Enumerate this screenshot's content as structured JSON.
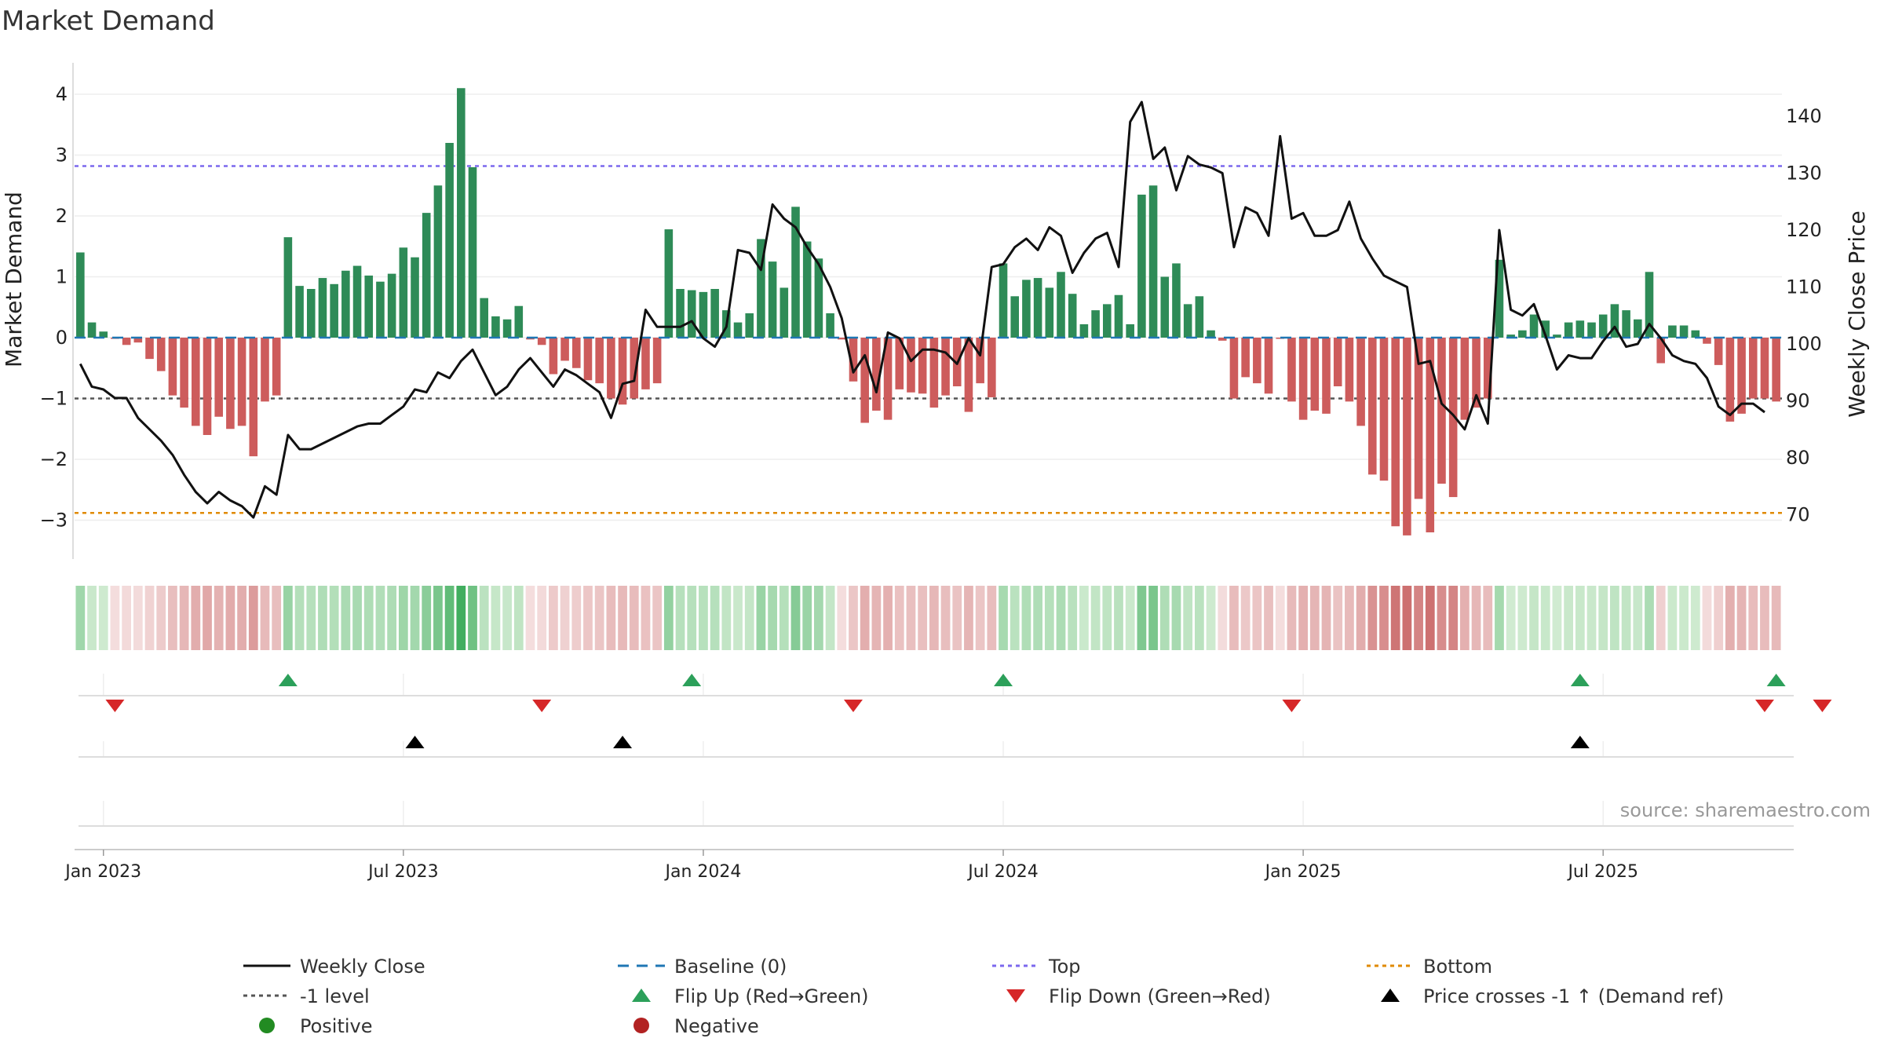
{
  "chart_data": {
    "type": "bar",
    "title": "Market Demand",
    "ylabel": "Market Demand",
    "y2label": "Weekly Close Price",
    "ylim": [
      -3.7,
      4.5
    ],
    "y2lim": [
      61,
      147
    ],
    "yticks": [
      "4",
      "3",
      "2",
      "1",
      "0",
      "−1",
      "−2",
      "−3"
    ],
    "y2ticks": [
      "140",
      "130",
      "120",
      "110",
      "100",
      "90",
      "80",
      "70"
    ],
    "x_labels": [
      "Jan 2023",
      "Jul 2023",
      "Jan 2024",
      "Jul 2024",
      "Jan 2025",
      "Jul 2025"
    ],
    "x_label_weeks": [
      0,
      26,
      52,
      78,
      104,
      130
    ],
    "start_week": -2,
    "levels": {
      "baseline": 0,
      "top": 2.82,
      "minus_one": -1,
      "bottom": -2.88
    },
    "demand": [
      1.4,
      0.25,
      0.1,
      -0.02,
      -0.12,
      -0.08,
      -0.35,
      -0.55,
      -0.95,
      -1.15,
      -1.45,
      -1.6,
      -1.3,
      -1.5,
      -1.45,
      -1.95,
      -1.05,
      -0.95,
      1.65,
      0.85,
      0.8,
      0.98,
      0.88,
      1.1,
      1.18,
      1.02,
      0.92,
      1.05,
      1.48,
      1.32,
      2.05,
      2.5,
      3.2,
      4.1,
      2.8,
      0.65,
      0.35,
      0.3,
      0.52,
      -0.03,
      -0.12,
      -0.6,
      -0.38,
      -0.5,
      -0.7,
      -0.75,
      -1.0,
      -1.1,
      -1.0,
      -0.85,
      -0.75,
      1.78,
      0.8,
      0.78,
      0.75,
      0.8,
      0.45,
      0.25,
      0.4,
      1.62,
      1.25,
      0.82,
      2.15,
      1.58,
      1.3,
      0.4,
      -0.03,
      -0.72,
      -1.4,
      -1.2,
      -1.35,
      -0.85,
      -0.9,
      -0.92,
      -1.15,
      -0.95,
      -0.8,
      -1.22,
      -0.75,
      -0.98,
      1.22,
      0.68,
      0.95,
      0.98,
      0.82,
      1.08,
      0.72,
      0.22,
      0.45,
      0.55,
      0.7,
      0.22,
      2.35,
      2.5,
      1.0,
      1.22,
      0.55,
      0.68,
      0.12,
      -0.05,
      -1.0,
      -0.65,
      -0.75,
      -0.92,
      -0.02,
      -1.05,
      -1.35,
      -1.2,
      -1.25,
      -0.8,
      -1.05,
      -1.45,
      -2.25,
      -2.35,
      -3.1,
      -3.25,
      -2.65,
      -3.2,
      -2.4,
      -2.62,
      -1.35,
      -1.15,
      -1.0,
      1.28,
      0.05,
      0.12,
      0.38,
      0.28,
      0.05,
      0.25,
      0.28,
      0.25,
      0.38,
      0.55,
      0.45,
      0.3,
      1.08,
      -0.42,
      0.2,
      0.2,
      0.12,
      -0.1,
      -0.45,
      -1.38,
      -1.25,
      -1.0,
      -1.0,
      -1.05
    ],
    "close": [
      96.5,
      92.5,
      92.0,
      90.5,
      90.5,
      87,
      85,
      83,
      80.5,
      77,
      74,
      72,
      74,
      72.5,
      71.5,
      69.5,
      75,
      73.5,
      84,
      81.5,
      81.5,
      82.5,
      83.5,
      84.5,
      85.5,
      86,
      86,
      87.5,
      89,
      92,
      91.5,
      95,
      94,
      97,
      99,
      95,
      91,
      92.5,
      95.5,
      97.5,
      95,
      92.5,
      95.5,
      94.5,
      93,
      91.5,
      87,
      93,
      93.5,
      106,
      103,
      103,
      103,
      104,
      101,
      99.5,
      103,
      116.5,
      116,
      113,
      124.5,
      122,
      120.5,
      117,
      114,
      110,
      104.5,
      95,
      98,
      91.5,
      102,
      101,
      97,
      99,
      99,
      98.5,
      96.5,
      101,
      98,
      113.5,
      114,
      117,
      118.5,
      116.5,
      120.5,
      119,
      112.5,
      116,
      118.5,
      119.5,
      113.5,
      139,
      142.5,
      132.5,
      134.5,
      127,
      133,
      131.5,
      131,
      130,
      117,
      124,
      123,
      119,
      136.5,
      122,
      123,
      119,
      119,
      120,
      125,
      118.5,
      115,
      112,
      111,
      110,
      96.5,
      97,
      89.5,
      87.5,
      85,
      91,
      86,
      120,
      106,
      105,
      107,
      101.5,
      95.5,
      98,
      97.5,
      97.5,
      100.5,
      103,
      99.5,
      100,
      103.5,
      101,
      98,
      97,
      96.5,
      94,
      89,
      87.5,
      89.5,
      89.5,
      88
    ],
    "flip_up_weeks": [
      16,
      51,
      78,
      128,
      145
    ],
    "flip_down_weeks": [
      1,
      38,
      65,
      103,
      144,
      149
    ],
    "price_cross_weeks": [
      27,
      45,
      128
    ],
    "colors": {
      "positive": "#2e8b57",
      "negative": "#cd5c5c",
      "close_line": "#111111",
      "baseline": "#1f77b4",
      "top": "#7b68ee",
      "minus_one": "#555555",
      "bottom": "#e08a00",
      "flip_up": "#2ca05a",
      "flip_down": "#d62728",
      "cross": "#000000"
    },
    "source": "source: sharemaestro.com",
    "legend": [
      {
        "label": "Weekly Close",
        "icon": "solid-line-icon"
      },
      {
        "label": "Baseline (0)",
        "icon": "dashed-line-icon"
      },
      {
        "label": "Top",
        "icon": "dotted-line-icon"
      },
      {
        "label": "Bottom",
        "icon": "dotted-line-icon"
      },
      {
        "label": "-1 level",
        "icon": "dotted-line-icon"
      },
      {
        "label": "Flip Up (Red→Green)",
        "icon": "triangle-up-icon"
      },
      {
        "label": "Flip Down (Green→Red)",
        "icon": "triangle-down-icon"
      },
      {
        "label": "Price crosses -1 ↑ (Demand ref)",
        "icon": "triangle-up-icon"
      },
      {
        "label": "Positive",
        "icon": "circle-icon"
      },
      {
        "label": "Negative",
        "icon": "circle-icon"
      }
    ]
  }
}
